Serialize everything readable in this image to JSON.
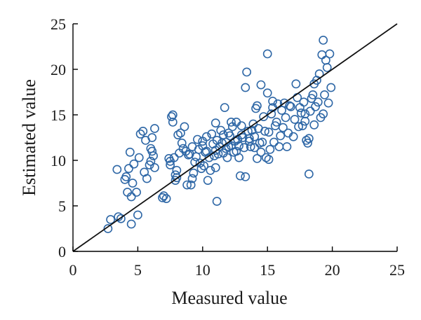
{
  "chart_data": {
    "type": "scatter",
    "title": "",
    "xlabel": "Measured value",
    "ylabel": "Estimated value",
    "xlim": [
      0,
      25
    ],
    "ylim": [
      0,
      25
    ],
    "xticks": [
      "0",
      "5",
      "10",
      "15",
      "20",
      "25"
    ],
    "yticks": [
      "0",
      "5",
      "10",
      "15",
      "20",
      "25"
    ],
    "grid": false,
    "marker": "open-circle",
    "marker_color": "#2e67a6",
    "line_color": "#111111",
    "reference_line": {
      "type": "y=x",
      "from": [
        0,
        0
      ],
      "to": [
        25,
        25
      ]
    },
    "series": [
      {
        "x": [
          2.7,
          2.9,
          3.5,
          3.7,
          3.4,
          4.0,
          4.2,
          4.1,
          4.3,
          4.5,
          4.6,
          4.7,
          4.9,
          5.0,
          5.1,
          5.2,
          5.4,
          5.6,
          5.7,
          5.9,
          6.0,
          6.1,
          6.2,
          6.3,
          6.1,
          6.0,
          5.5,
          4.4,
          7.0,
          7.2,
          7.4,
          7.5,
          7.6,
          7.7,
          7.7,
          7.8,
          7.9,
          8.0,
          8.1,
          8.2,
          8.3,
          8.4,
          8.5,
          8.6,
          8.7,
          8.9,
          9.0,
          9.1,
          9.2,
          9.3,
          9.4,
          9.5,
          9.6,
          9.7,
          9.8,
          9.9,
          10.0,
          10.0,
          10.1,
          10.2,
          10.3,
          10.4,
          10.5,
          10.6,
          10.7,
          10.8,
          10.9,
          11.0,
          11.0,
          11.1,
          11.1,
          11.2,
          11.3,
          11.4,
          11.5,
          11.6,
          11.7,
          11.8,
          11.8,
          11.9,
          12.0,
          12.0,
          12.1,
          12.2,
          12.3,
          12.4,
          12.5,
          12.6,
          12.6,
          12.7,
          12.8,
          12.9,
          13.0,
          13.0,
          13.1,
          13.2,
          13.3,
          13.4,
          13.5,
          13.6,
          13.7,
          13.8,
          13.9,
          14.0,
          14.0,
          14.1,
          14.2,
          14.3,
          14.4,
          14.5,
          14.5,
          14.6,
          14.7,
          14.8,
          14.9,
          15.0,
          15.0,
          15.1,
          15.2,
          15.3,
          15.4,
          15.5,
          15.6,
          15.7,
          15.8,
          15.9,
          16.0,
          16.1,
          16.2,
          16.3,
          16.4,
          16.5,
          16.6,
          16.8,
          17.0,
          17.1,
          17.2,
          17.3,
          17.4,
          17.5,
          17.6,
          17.7,
          17.8,
          17.9,
          18.0,
          18.1,
          18.2,
          18.3,
          18.4,
          18.5,
          18.6,
          18.7,
          18.8,
          18.9,
          19.0,
          19.1,
          19.2,
          19.3,
          19.4,
          19.5,
          19.6,
          19.7,
          19.8,
          19.9,
          15.1,
          13.3,
          12.8,
          18.2,
          11.0,
          4.5,
          7.9,
          7.5,
          8.8,
          9.2,
          6.3,
          6.9,
          8.0,
          10.3,
          11.6,
          12.2,
          13.6,
          14.2,
          15.4,
          16.7,
          17.9,
          18.6,
          19.3
        ],
        "y": [
          2.5,
          3.5,
          3.8,
          3.6,
          9.0,
          7.9,
          6.5,
          8.2,
          9.1,
          6.0,
          7.5,
          9.6,
          6.5,
          4.0,
          10.3,
          12.9,
          13.2,
          12.2,
          8.0,
          9.5,
          11.3,
          11.0,
          10.5,
          13.5,
          12.5,
          9.9,
          8.7,
          10.9,
          6.1,
          5.8,
          10.2,
          9.5,
          14.8,
          14.2,
          15.0,
          10.3,
          8.4,
          8.9,
          12.8,
          10.8,
          13.0,
          11.9,
          11.3,
          13.7,
          11.0,
          10.6,
          10.7,
          7.3,
          11.5,
          8.6,
          9.8,
          10.4,
          12.3,
          11.2,
          9.7,
          9.1,
          11.6,
          12.1,
          9.4,
          10.9,
          11.0,
          7.8,
          10.3,
          8.9,
          12.9,
          11.8,
          10.5,
          14.1,
          9.2,
          12.2,
          5.5,
          10.7,
          11.5,
          13.3,
          11.9,
          12.8,
          15.8,
          12.0,
          11.3,
          10.3,
          11.5,
          13.0,
          12.7,
          11.6,
          13.7,
          10.9,
          12.1,
          11.0,
          14.2,
          12.3,
          11.6,
          8.3,
          12.8,
          13.8,
          12.5,
          11.4,
          18.0,
          19.7,
          13.2,
          12.4,
          11.5,
          13.3,
          14.0,
          12.6,
          11.4,
          15.7,
          16.0,
          13.5,
          11.9,
          18.3,
          10.9,
          12.0,
          14.8,
          13.2,
          10.3,
          17.4,
          21.7,
          13.1,
          11.2,
          15.1,
          16.5,
          12.0,
          13.8,
          14.2,
          16.2,
          11.5,
          12.7,
          15.5,
          13.6,
          16.3,
          14.7,
          11.5,
          13.0,
          15.9,
          12.6,
          14.5,
          18.4,
          16.9,
          13.7,
          15.8,
          15.2,
          13.8,
          16.4,
          14.3,
          12.2,
          11.9,
          8.5,
          15.4,
          16.8,
          17.2,
          13.9,
          15.9,
          18.8,
          16.4,
          19.5,
          14.7,
          21.6,
          23.2,
          17.2,
          21.0,
          20.2,
          16.3,
          21.7,
          18.0,
          10.1,
          8.2,
          10.3,
          12.4,
          11.1,
          3.0,
          7.8,
          9.9,
          7.3,
          8.0,
          9.2,
          5.9,
          8.1,
          12.6,
          10.8,
          14.2,
          12.1,
          10.2,
          15.8,
          16.0,
          15.1,
          18.4,
          15.1
        ]
      }
    ]
  }
}
